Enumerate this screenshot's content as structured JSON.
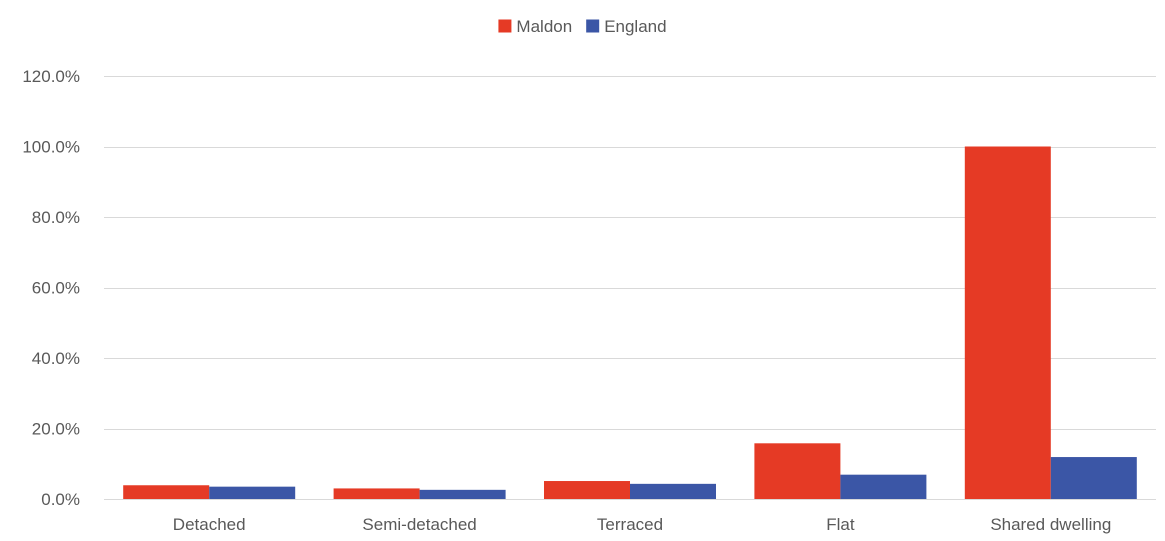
{
  "chart_data": {
    "type": "bar",
    "categories": [
      "Detached",
      "Semi-detached",
      "Terraced",
      "Flat",
      "Shared dwelling"
    ],
    "series": [
      {
        "name": "Maldon",
        "values": [
          3.9,
          3.0,
          5.1,
          15.8,
          100.0
        ],
        "color": "#e53a25"
      },
      {
        "name": "England",
        "values": [
          3.5,
          2.6,
          4.3,
          6.9,
          11.9
        ],
        "color": "#3b56a6"
      }
    ],
    "ylim": [
      0,
      120
    ],
    "y_ticks": [
      0,
      20,
      40,
      60,
      80,
      100,
      120
    ],
    "y_tick_labels": [
      "0.0%",
      "20.0%",
      "40.0%",
      "60.0%",
      "80.0%",
      "100.0%",
      "120.0%"
    ],
    "grid": true,
    "legend_position": "top-center",
    "title": "",
    "xlabel": "",
    "ylabel": ""
  }
}
